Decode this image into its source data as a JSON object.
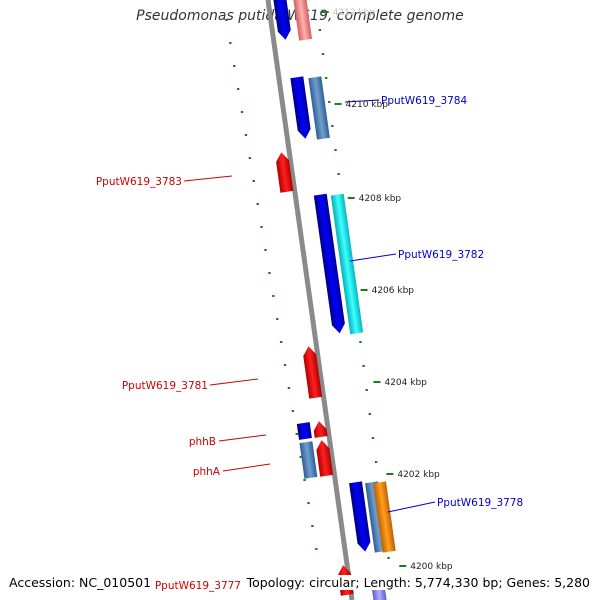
{
  "title": "Pseudomonas putida W619, complete genome",
  "accession": "Accession: NC_010501",
  "topology": "Topology: circular; Length: 5,774,330 bp; Genes: 5,280",
  "ticks": [
    {
      "label": "4212 kbp",
      "faded": true
    },
    {
      "label": "4210 kbp"
    },
    {
      "label": "4208 kbp"
    },
    {
      "label": "4206 kbp"
    },
    {
      "label": "4204 kbp"
    },
    {
      "label": "4202 kbp"
    },
    {
      "label": "4200 kbp"
    }
  ],
  "gene_labels": [
    {
      "text": "PputW619_3784",
      "strand": "forward"
    },
    {
      "text": "PputW619_3783",
      "strand": "reverse"
    },
    {
      "text": "PputW619_3782",
      "strand": "forward"
    },
    {
      "text": "PputW619_3781",
      "strand": "reverse"
    },
    {
      "text": "phhB",
      "strand": "reverse"
    },
    {
      "text": "phhA",
      "strand": "reverse"
    },
    {
      "text": "PputW619_3778",
      "strand": "forward"
    },
    {
      "text": "PputW619_3777",
      "strand": "reverse"
    }
  ],
  "colors": {
    "forward_cds": "#0000ee",
    "forward_gene": "#4f7fb3",
    "reverse_cds": "#ee0000",
    "rna": "#00e0e8",
    "orange": "#ff8c00",
    "pink": "#f08080",
    "backbone": "#8a8a8a",
    "tick": "#1a7f1a",
    "forward_label": "#0000cc",
    "reverse_label": "#cc0000"
  }
}
